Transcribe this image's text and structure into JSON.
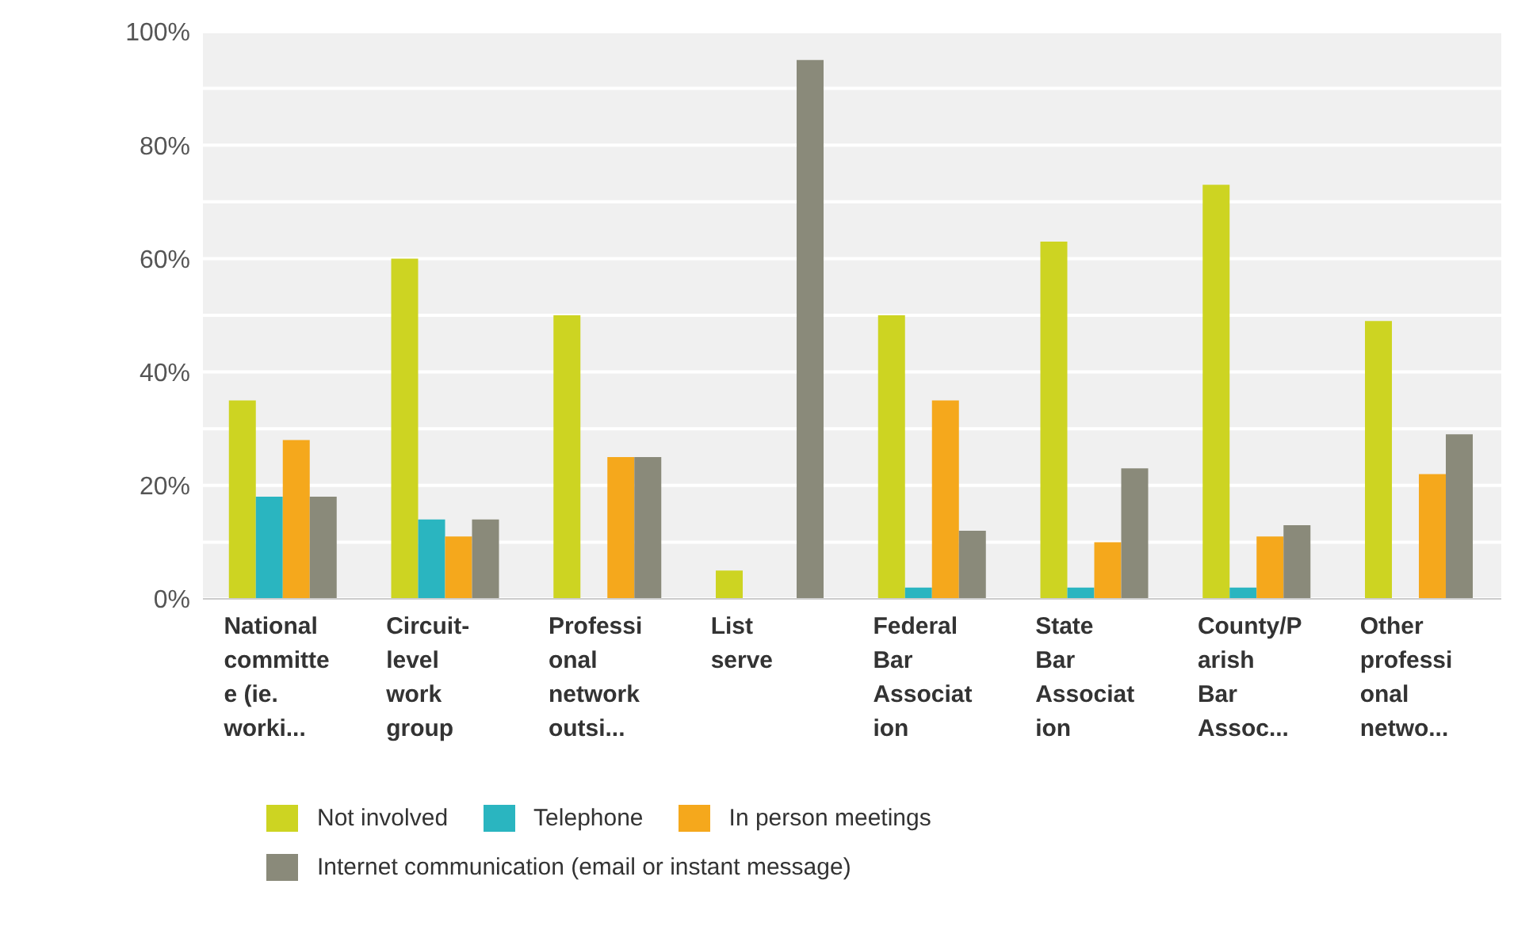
{
  "chart_data": {
    "type": "bar",
    "categories": [
      "National committee (ie. worki...",
      "Circuit-level work group",
      "Professional network outsi...",
      "List serve",
      "Federal Bar Association",
      "State Bar Association",
      "County/Parish Bar Assoc...",
      "Other professional netwo..."
    ],
    "series": [
      {
        "name": "Not involved",
        "color": "#cdd422",
        "values": [
          35,
          60,
          50,
          5,
          50,
          63,
          73,
          49
        ]
      },
      {
        "name": "Telephone",
        "color": "#2ab5c0",
        "values": [
          18,
          14,
          0,
          0,
          2,
          2,
          2,
          0
        ]
      },
      {
        "name": "In person meetings",
        "color": "#f5a81c",
        "values": [
          28,
          11,
          25,
          0,
          35,
          10,
          11,
          22
        ]
      },
      {
        "name": "Internet communication (email or instant message)",
        "color": "#8a8a7a",
        "values": [
          18,
          14,
          25,
          95,
          12,
          23,
          13,
          29
        ]
      }
    ],
    "ylim": [
      0,
      100
    ],
    "yticks": [
      {
        "value": 0,
        "label": "0%"
      },
      {
        "value": 10,
        "label": null
      },
      {
        "value": 20,
        "label": "20%"
      },
      {
        "value": 30,
        "label": null
      },
      {
        "value": 40,
        "label": "40%"
      },
      {
        "value": 50,
        "label": null
      },
      {
        "value": 60,
        "label": "60%"
      },
      {
        "value": 70,
        "label": null
      },
      {
        "value": 80,
        "label": "80%"
      },
      {
        "value": 90,
        "label": null
      },
      {
        "value": 100,
        "label": "100%"
      }
    ],
    "grid": "y",
    "legend": "bottom"
  }
}
